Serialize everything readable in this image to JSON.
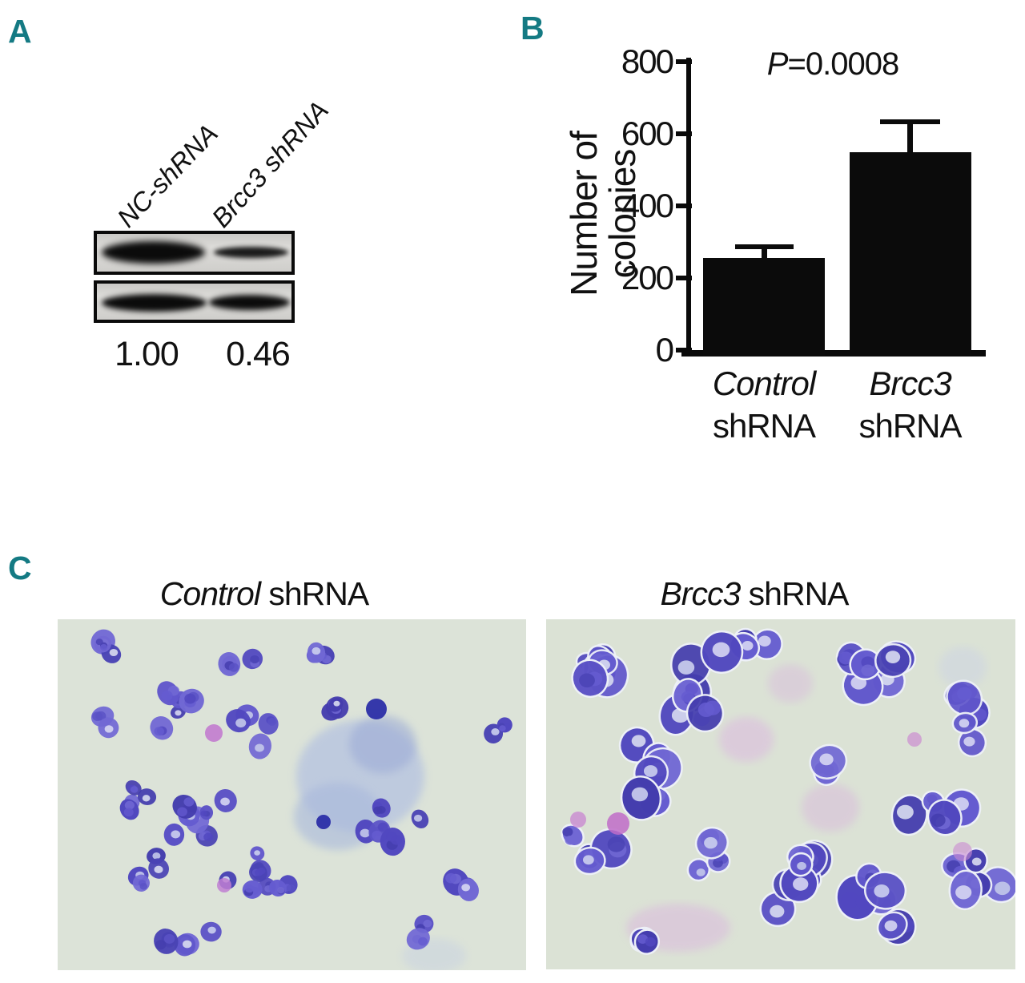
{
  "figure": {
    "type": "three-panel scientific figure"
  },
  "panels": {
    "a": {
      "label": "A",
      "lanes": [
        "NC-shRNA",
        "Brcc3 shRNA"
      ],
      "blots": [
        "target-protein-band-row",
        "loading-control-band-row"
      ],
      "quant": [
        "1.00",
        "0.46"
      ]
    },
    "b": {
      "label": "B"
    },
    "c": {
      "label": "C",
      "images": [
        {
          "em": "Control",
          "rest": " shRNA"
        },
        {
          "em": "Brcc3",
          "rest": " shRNA"
        }
      ]
    }
  },
  "chart_data": {
    "type": "bar",
    "title": "",
    "xlabel": "",
    "ylabel": "Number of colonies",
    "categories": [
      "Control shRNA",
      "Brcc3 shRNA"
    ],
    "categories_styled": [
      {
        "em": "Control",
        "rest": "shRNA"
      },
      {
        "em": "Brcc3",
        "rest": "shRNA"
      }
    ],
    "values": [
      255,
      550
    ],
    "errors": [
      32,
      84
    ],
    "ylim": [
      0,
      800
    ],
    "yticks": [
      0,
      200,
      400,
      600,
      800
    ],
    "annotation": {
      "em": "P",
      "rest": "=0.0008"
    },
    "bar_color": "#0b0b0b",
    "grid": false,
    "legend": null
  },
  "colors": {
    "panel_letter": "#147a83",
    "axis": "#0a0a0a",
    "micro_bg_left": "#dce3d8",
    "micro_bg_right": "#dbe2d5"
  }
}
